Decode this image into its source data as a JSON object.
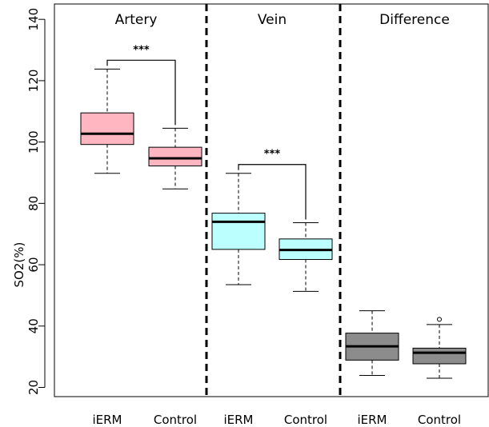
{
  "chart_data": {
    "type": "boxplot",
    "ylabel": "SO2(%)",
    "ylim": [
      17,
      145
    ],
    "y_ticks": [
      20,
      40,
      60,
      80,
      100,
      120,
      140
    ],
    "categories": [
      "iERM",
      "Control",
      "iERM",
      "Control",
      "iERM",
      "Control"
    ],
    "groups": [
      {
        "title": "Artery",
        "color": "#ffb6c1",
        "boxes": [
          {
            "label": "iERM",
            "whisker_low": 89.8,
            "q1": 99.2,
            "median": 102.7,
            "q3": 109.5,
            "whisker_high": 123.8,
            "outliers": []
          },
          {
            "label": "Control",
            "whisker_low": 84.7,
            "q1": 92.2,
            "median": 94.7,
            "q3": 98.3,
            "whisker_high": 104.5,
            "outliers": []
          }
        ],
        "significance": "***"
      },
      {
        "title": "Vein",
        "color": "#bbffff",
        "boxes": [
          {
            "label": "iERM",
            "whisker_low": 53.5,
            "q1": 65.0,
            "median": 74.0,
            "q3": 76.8,
            "whisker_high": 89.8,
            "outliers": []
          },
          {
            "label": "Control",
            "whisker_low": 51.3,
            "q1": 61.7,
            "median": 64.8,
            "q3": 68.4,
            "whisker_high": 73.7,
            "outliers": []
          }
        ],
        "significance": "***"
      },
      {
        "title": "Difference",
        "color": "#8c8c8c",
        "boxes": [
          {
            "label": "iERM",
            "whisker_low": 23.9,
            "q1": 28.9,
            "median": 33.4,
            "q3": 37.7,
            "whisker_high": 45.0,
            "outliers": []
          },
          {
            "label": "Control",
            "whisker_low": 23.0,
            "q1": 27.7,
            "median": 31.3,
            "q3": 32.8,
            "whisker_high": 40.5,
            "outliers": [
              42.2
            ]
          }
        ],
        "significance": ""
      }
    ]
  }
}
